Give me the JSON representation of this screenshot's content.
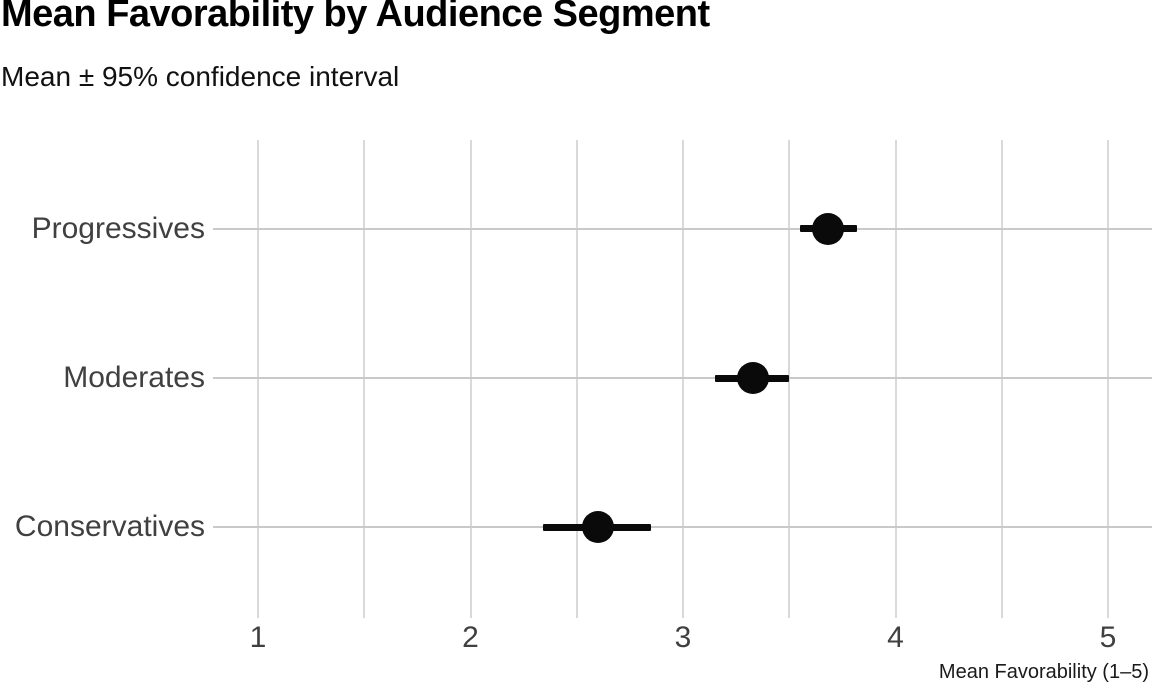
{
  "header": {
    "title": "Mean Favorability by Audience Segment",
    "subtitle": "Mean ± 95% confidence interval"
  },
  "chart_data": {
    "type": "scatter",
    "variant": "horizontal dot plot with 95% CI error bars",
    "title": "Mean Favorability by Audience Segment",
    "subtitle": "Mean ± 95% confidence interval",
    "xlabel": "Mean Favorability (1–5)",
    "ylabel": "",
    "xlim": [
      0.79,
      5.21
    ],
    "xticks": [
      1,
      2,
      3,
      4,
      5
    ],
    "xtick_labels": [
      "1",
      "2",
      "3",
      "4",
      "5"
    ],
    "minor_gridline_step": 0.5,
    "grid": true,
    "legend": false,
    "categories": [
      "Progressives",
      "Moderates",
      "Conservatives"
    ],
    "series": [
      {
        "name": "Mean favorability",
        "points": [
          {
            "category": "Progressives",
            "mean": 3.68,
            "ci_low": 3.55,
            "ci_high": 3.82
          },
          {
            "category": "Moderates",
            "mean": 3.33,
            "ci_low": 3.15,
            "ci_high": 3.5
          },
          {
            "category": "Conservatives",
            "mean": 2.6,
            "ci_low": 2.34,
            "ci_high": 2.85
          }
        ]
      }
    ],
    "colors": {
      "point": "#0a0a0a",
      "error_bar": "#0a0a0a",
      "vertical_gridline": "#d9d9d9",
      "row_gridline": "#c9c9c9",
      "category_label": "#404040",
      "tick_label": "#404040",
      "title": "#000000",
      "subtitle": "#111111",
      "axis_title": "#1a1a1a"
    }
  }
}
